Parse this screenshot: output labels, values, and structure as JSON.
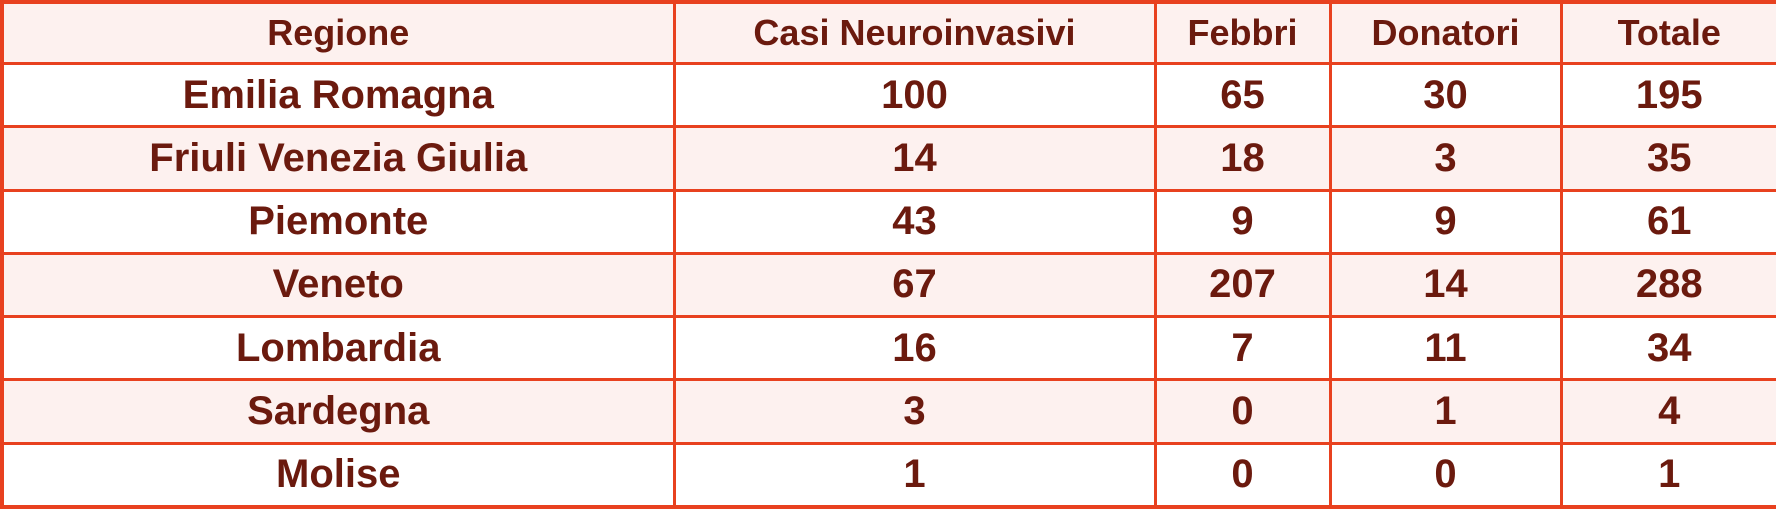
{
  "colors": {
    "border": "#e8411f",
    "text": "#6b1a0e",
    "band": "#fdf1ef"
  },
  "chart_data": {
    "type": "table",
    "columns": [
      "Regione",
      "Casi Neuroinvasivi",
      "Febbri",
      "Donatori",
      "Totale"
    ],
    "rows": [
      [
        "Emilia Romagna",
        "100",
        "65",
        "30",
        "195"
      ],
      [
        "Friuli Venezia Giulia",
        "14",
        "18",
        "3",
        "35"
      ],
      [
        "Piemonte",
        "43",
        "9",
        "9",
        "61"
      ],
      [
        "Veneto",
        "67",
        "207",
        "14",
        "288"
      ],
      [
        "Lombardia",
        "16",
        "7",
        "11",
        "34"
      ],
      [
        "Sardegna",
        "3",
        "0",
        "1",
        "4"
      ],
      [
        "Molise",
        "1",
        "0",
        "0",
        "1"
      ]
    ]
  }
}
